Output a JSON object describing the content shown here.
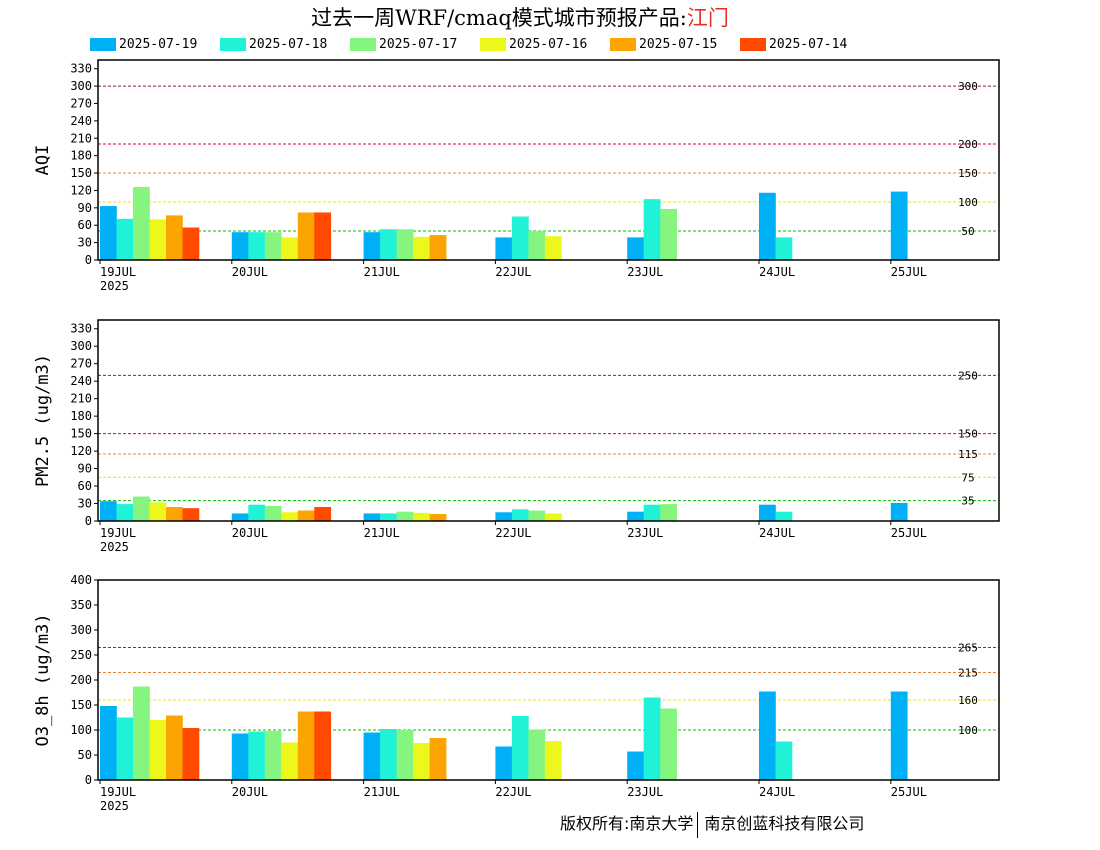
{
  "title": {
    "prefix": "过去一周WRF/cmaq模式城市预报产品:",
    "city": "江门"
  },
  "legend": [
    {
      "label": "2025-07-19",
      "color": "#00b0f7"
    },
    {
      "label": "2025-07-18",
      "color": "#1ff2d6"
    },
    {
      "label": "2025-07-17",
      "color": "#86f57f"
    },
    {
      "label": "2025-07-16",
      "color": "#ecf81c"
    },
    {
      "label": "2025-07-15",
      "color": "#fca502"
    },
    {
      "label": "2025-07-14",
      "color": "#ff4a00"
    }
  ],
  "copyright": {
    "left": "版权所有:南京大学",
    "right": "南京创蓝科技有限公司"
  },
  "chart_data": [
    {
      "type": "bar",
      "ylabel": "AQI",
      "ylim": [
        0,
        345
      ],
      "yticks": [
        0,
        30,
        60,
        90,
        120,
        150,
        180,
        210,
        240,
        270,
        300,
        330
      ],
      "categories": [
        "19JUL",
        "20JUL",
        "21JUL",
        "22JUL",
        "23JUL",
        "24JUL",
        "25JUL"
      ],
      "year_label": "2025",
      "thresholds": [
        {
          "value": 300,
          "label": "300",
          "color": "#a0124e"
        },
        {
          "value": 200,
          "label": "200",
          "color": "#e3002a"
        },
        {
          "value": 150,
          "label": "150",
          "color": "#f08030"
        },
        {
          "value": 100,
          "label": "100",
          "color": "#f0e000"
        },
        {
          "value": 50,
          "label": "50",
          "color": "#00c000"
        }
      ],
      "series": [
        {
          "name": "2025-07-19",
          "values": [
            93,
            48,
            48,
            39,
            39,
            116,
            118
          ]
        },
        {
          "name": "2025-07-18",
          "values": [
            71,
            48,
            53,
            75,
            105,
            39,
            null
          ]
        },
        {
          "name": "2025-07-17",
          "values": [
            126,
            48,
            53,
            50,
            88,
            null,
            null
          ]
        },
        {
          "name": "2025-07-16",
          "values": [
            70,
            39,
            40,
            41,
            null,
            null,
            null
          ]
        },
        {
          "name": "2025-07-15",
          "values": [
            77,
            82,
            43,
            null,
            null,
            null,
            null
          ]
        },
        {
          "name": "2025-07-14",
          "values": [
            56,
            82,
            null,
            null,
            null,
            null,
            null
          ]
        }
      ]
    },
    {
      "type": "bar",
      "ylabel": "PM2.5 (ug/m3)",
      "ylim": [
        0,
        345
      ],
      "yticks": [
        0,
        30,
        60,
        90,
        120,
        150,
        180,
        210,
        240,
        270,
        300,
        330
      ],
      "categories": [
        "19JUL",
        "20JUL",
        "21JUL",
        "22JUL",
        "23JUL",
        "24JUL",
        "25JUL"
      ],
      "year_label": "2025",
      "thresholds": [
        {
          "value": 250,
          "label": "250",
          "color": "#a0124e"
        },
        {
          "value": 150,
          "label": "150",
          "color": "#e3002a"
        },
        {
          "value": 115,
          "label": "115",
          "color": "#f08030"
        },
        {
          "value": 75,
          "label": "75",
          "color": "#f0e000"
        },
        {
          "value": 35,
          "label": "35",
          "color": "#00c000"
        }
      ],
      "series": [
        {
          "name": "2025-07-19",
          "values": [
            34,
            13,
            13,
            15,
            16,
            28,
            31
          ]
        },
        {
          "name": "2025-07-18",
          "values": [
            29,
            28,
            13,
            20,
            28,
            16,
            null
          ]
        },
        {
          "name": "2025-07-17",
          "values": [
            42,
            26,
            16,
            18,
            29,
            null,
            null
          ]
        },
        {
          "name": "2025-07-16",
          "values": [
            32,
            15,
            14,
            13,
            null,
            null,
            null
          ]
        },
        {
          "name": "2025-07-15",
          "values": [
            24,
            18,
            12,
            null,
            null,
            null,
            null
          ]
        },
        {
          "name": "2025-07-14",
          "values": [
            22,
            24,
            null,
            null,
            null,
            null,
            null
          ]
        }
      ]
    },
    {
      "type": "bar",
      "ylabel": "O3_8h (ug/m3)",
      "ylim": [
        0,
        400
      ],
      "yticks": [
        0,
        50,
        100,
        150,
        200,
        250,
        300,
        350,
        400
      ],
      "categories": [
        "19JUL",
        "20JUL",
        "21JUL",
        "22JUL",
        "23JUL",
        "24JUL",
        "25JUL"
      ],
      "year_label": "2025",
      "thresholds": [
        {
          "value": 265,
          "label": "265",
          "color": "#e3002a"
        },
        {
          "value": 215,
          "label": "215",
          "color": "#f08030"
        },
        {
          "value": 160,
          "label": "160",
          "color": "#f0e000"
        },
        {
          "value": 100,
          "label": "100",
          "color": "#00c000"
        }
      ],
      "series": [
        {
          "name": "2025-07-19",
          "values": [
            148,
            93,
            95,
            67,
            57,
            177,
            177
          ]
        },
        {
          "name": "2025-07-18",
          "values": [
            125,
            97,
            102,
            128,
            165,
            77,
            null
          ]
        },
        {
          "name": "2025-07-17",
          "values": [
            187,
            98,
            100,
            101,
            143,
            null,
            null
          ]
        },
        {
          "name": "2025-07-16",
          "values": [
            120,
            75,
            74,
            78,
            null,
            null,
            null
          ]
        },
        {
          "name": "2025-07-15",
          "values": [
            129,
            137,
            84,
            null,
            null,
            null,
            null
          ]
        },
        {
          "name": "2025-07-14",
          "values": [
            104,
            137,
            null,
            null,
            null,
            null,
            null
          ]
        }
      ]
    }
  ]
}
